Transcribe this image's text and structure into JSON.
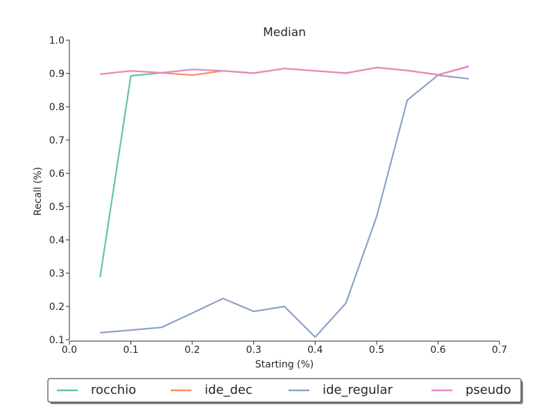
{
  "chart_data": {
    "type": "line",
    "title": "Median",
    "xlabel": "Starting (%)",
    "ylabel": "Recall (%)",
    "xlim": [
      0.0,
      0.7
    ],
    "ylim": [
      0.1,
      1.0
    ],
    "xticks": [
      "0.0",
      "0.1",
      "0.2",
      "0.3",
      "0.4",
      "0.5",
      "0.6",
      "0.7"
    ],
    "yticks": [
      "0.1",
      "0.2",
      "0.3",
      "0.4",
      "0.5",
      "0.6",
      "0.7",
      "0.8",
      "0.9",
      "1.0"
    ],
    "grid": false,
    "legend_position": "bottom",
    "x": [
      0.05,
      0.1,
      0.15,
      0.2,
      0.25,
      0.3,
      0.35,
      0.4,
      0.45,
      0.5,
      0.55,
      0.6,
      0.65
    ],
    "series": [
      {
        "name": "rocchio",
        "color": "#66c2a5",
        "values": [
          0.288,
          0.893,
          0.902,
          0.912,
          0.908,
          0.901,
          0.915,
          0.908,
          0.901,
          0.918,
          0.909,
          0.896,
          0.921
        ]
      },
      {
        "name": "ide_dec",
        "color": "#fc8d62",
        "values": [
          0.898,
          0.908,
          0.902,
          0.895,
          0.908,
          0.901,
          0.915,
          0.908,
          0.901,
          0.918,
          0.909,
          0.896,
          0.921
        ]
      },
      {
        "name": "ide_regular",
        "color": "#8da0cb",
        "values": [
          0.121,
          0.129,
          0.137,
          0.18,
          0.224,
          0.185,
          0.2,
          0.108,
          0.21,
          0.47,
          0.82,
          0.895,
          0.884
        ]
      },
      {
        "name": "pseudo",
        "color": "#e78ac3",
        "values": [
          0.898,
          0.908,
          0.902,
          0.912,
          0.908,
          0.901,
          0.915,
          0.908,
          0.901,
          0.918,
          0.909,
          0.896,
          0.922
        ]
      }
    ]
  }
}
